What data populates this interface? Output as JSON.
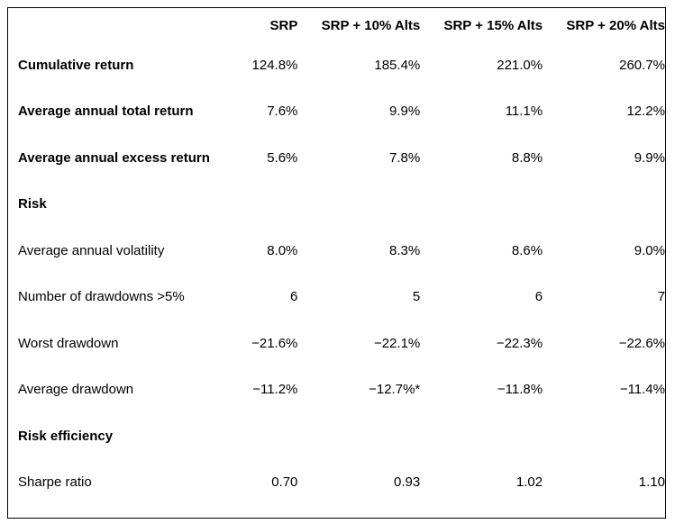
{
  "table": {
    "headers": [
      "",
      "SRP",
      "SRP + 10% Alts",
      "SRP + 15% Alts",
      "SRP + 20% Alts"
    ],
    "rows": [
      {
        "label": "Cumulative return",
        "bold": true,
        "values": [
          "124.8%",
          "185.4%",
          "221.0%",
          "260.7%"
        ]
      },
      {
        "label": "Average annual total return",
        "bold": true,
        "values": [
          "7.6%",
          "9.9%",
          "11.1%",
          "12.2%"
        ]
      },
      {
        "label": "Average annual excess return",
        "bold": true,
        "values": [
          "5.6%",
          "7.8%",
          "8.8%",
          "9.9%"
        ]
      },
      {
        "label": "Risk",
        "bold": true,
        "values": [
          "",
          "",
          "",
          ""
        ]
      },
      {
        "label": "Average annual volatility",
        "bold": false,
        "values": [
          "8.0%",
          "8.3%",
          "8.6%",
          "9.0%"
        ]
      },
      {
        "label": "Number of drawdowns >5%",
        "bold": false,
        "values": [
          "6",
          "5",
          "6",
          "7"
        ]
      },
      {
        "label": "Worst drawdown",
        "bold": false,
        "values": [
          "−21.6%",
          "−22.1%",
          "−22.3%",
          "−22.6%"
        ]
      },
      {
        "label": "Average drawdown",
        "bold": false,
        "values": [
          "−11.2%",
          "−12.7%*",
          "−11.8%",
          "−11.4%"
        ]
      },
      {
        "label": "Risk efficiency",
        "bold": true,
        "values": [
          "",
          "",
          "",
          ""
        ]
      },
      {
        "label": "Sharpe ratio",
        "bold": false,
        "values": [
          "0.70",
          "0.93",
          "1.02",
          "1.10"
        ]
      }
    ]
  }
}
